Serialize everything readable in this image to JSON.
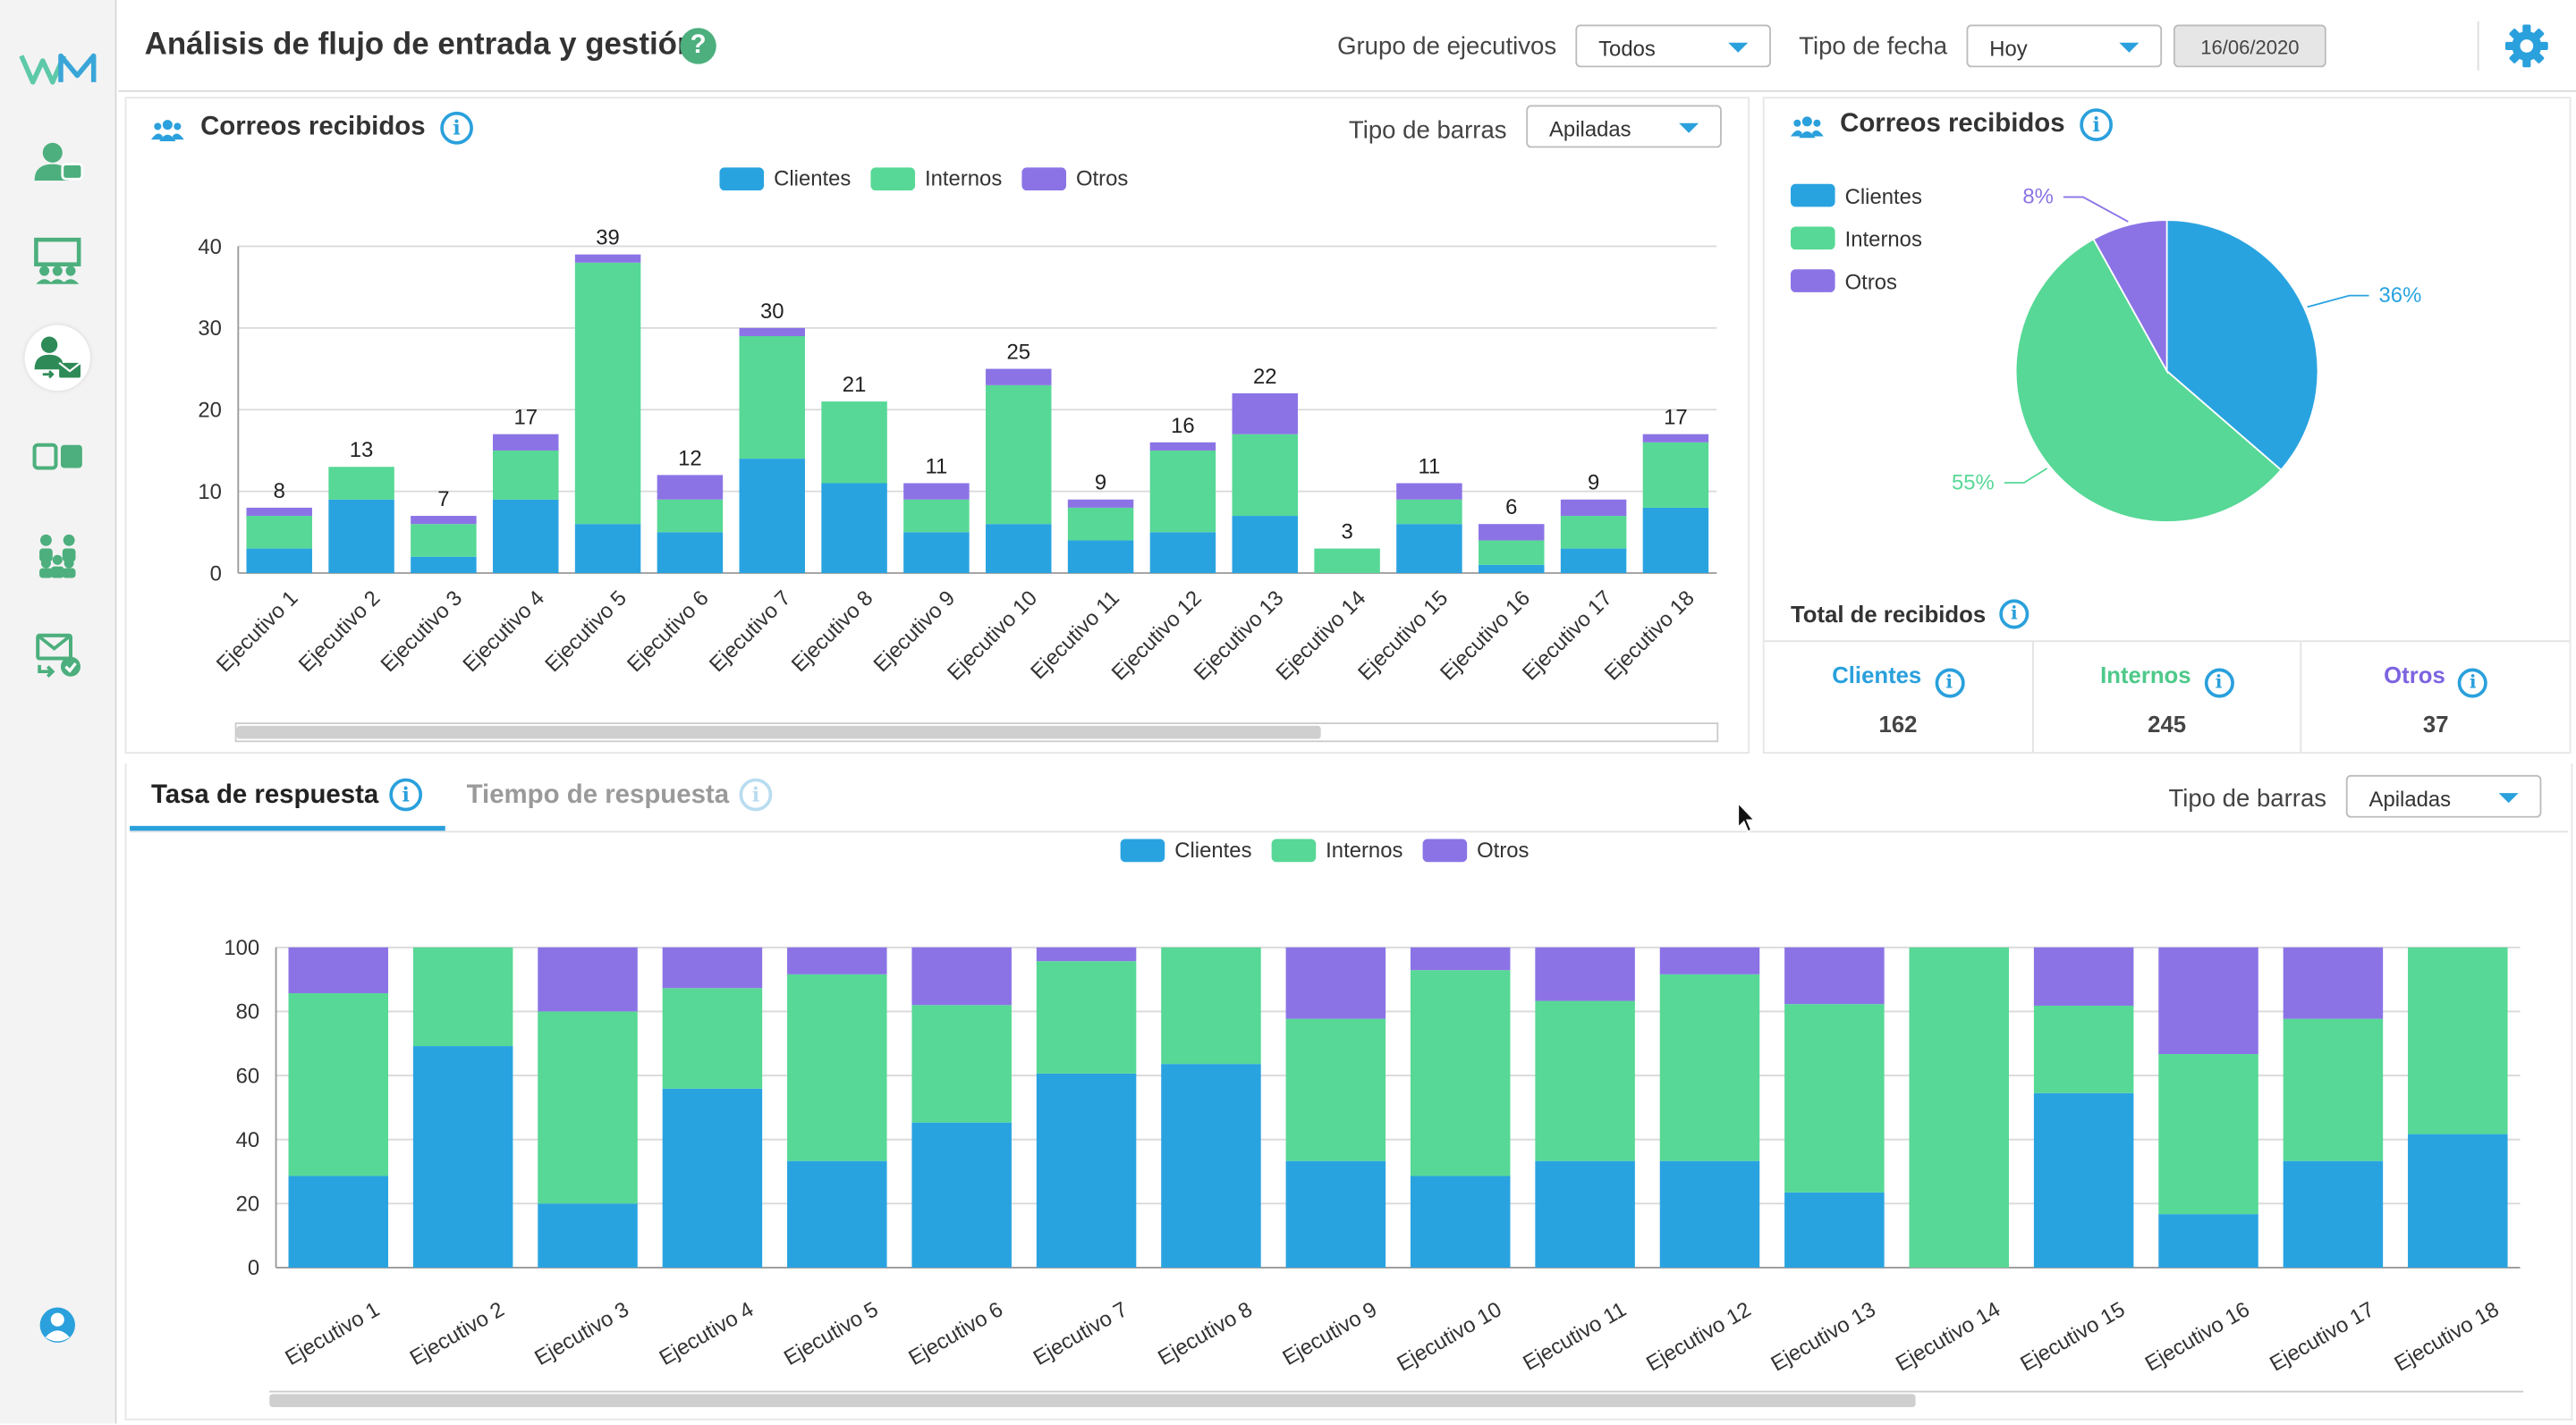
{
  "header": {
    "title": "Análisis de flujo de entrada y gestión",
    "help_icon": "help-question-icon",
    "group_label": "Grupo de ejecutivos",
    "group_value": "Todos",
    "date_type_label": "Tipo de fecha",
    "date_type_value": "Hoy",
    "date_value": "16/06/2020"
  },
  "sidebar": {
    "logo": "WM",
    "items": [
      {
        "icon": "user-tag-icon",
        "active": false
      },
      {
        "icon": "presentation-team-icon",
        "active": false
      },
      {
        "icon": "user-mail-flow-icon",
        "active": true
      },
      {
        "icon": "cards-toggle-icon",
        "active": false
      },
      {
        "icon": "team-group-icon",
        "active": false
      },
      {
        "icon": "mail-check-icon",
        "active": false
      }
    ],
    "bottom_icon": "user-profile-icon"
  },
  "colors": {
    "clientes": "#29a3e0",
    "internos": "#57d896",
    "otros": "#8b73e6",
    "accent": "#2aa0dc",
    "green": "#4caf7d"
  },
  "bar_panel": {
    "title": "Correos recibidos",
    "bar_type_label": "Tipo de barras",
    "bar_type_value": "Apiladas",
    "legend": [
      "Clientes",
      "Internos",
      "Otros"
    ]
  },
  "pie_panel": {
    "title": "Correos recibidos",
    "legend": [
      "Clientes",
      "Internos",
      "Otros"
    ],
    "totals_title": "Total de recibidos",
    "totals": [
      {
        "label": "Clientes",
        "value": "162"
      },
      {
        "label": "Internos",
        "value": "245"
      },
      {
        "label": "Otros",
        "value": "37"
      }
    ]
  },
  "bottom_panel": {
    "tabs": [
      "Tasa de respuesta",
      "Tiempo de respuesta"
    ],
    "bar_type_label": "Tipo de barras",
    "bar_type_value": "Apiladas",
    "legend": [
      "Clientes",
      "Internos",
      "Otros"
    ]
  },
  "chart_data": [
    {
      "type": "bar",
      "stacked": true,
      "title": "Correos recibidos",
      "categories": [
        "Ejecutivo 1",
        "Ejecutivo 2",
        "Ejecutivo 3",
        "Ejecutivo 4",
        "Ejecutivo 5",
        "Ejecutivo 6",
        "Ejecutivo 7",
        "Ejecutivo 8",
        "Ejecutivo 9",
        "Ejecutivo 10",
        "Ejecutivo 11",
        "Ejecutivo 12",
        "Ejecutivo 13",
        "Ejecutivo 14",
        "Ejecutivo 15",
        "Ejecutivo 16",
        "Ejecutivo 17",
        "Ejecutivo 18"
      ],
      "series": [
        {
          "name": "Clientes",
          "values": [
            3,
            9,
            2,
            9,
            6,
            5,
            14,
            11,
            5,
            6,
            4,
            5,
            7,
            0,
            6,
            1,
            3,
            8
          ]
        },
        {
          "name": "Internos",
          "values": [
            4,
            4,
            4,
            6,
            32,
            4,
            15,
            10,
            4,
            17,
            4,
            10,
            10,
            3,
            3,
            3,
            4,
            8
          ]
        },
        {
          "name": "Otros",
          "values": [
            1,
            0,
            1,
            2,
            1,
            3,
            1,
            0,
            2,
            2,
            1,
            1,
            5,
            0,
            2,
            2,
            2,
            1
          ]
        }
      ],
      "totals": [
        8,
        13,
        7,
        17,
        39,
        12,
        30,
        21,
        11,
        25,
        9,
        16,
        22,
        3,
        11,
        6,
        9,
        17
      ],
      "yticks": [
        0,
        10,
        20,
        30,
        40
      ],
      "ylim": [
        0,
        40
      ],
      "grid": true,
      "legend_position": "top"
    },
    {
      "type": "pie",
      "title": "Correos recibidos",
      "labels": [
        "Clientes",
        "Internos",
        "Otros"
      ],
      "values": [
        36,
        55,
        8
      ],
      "value_labels": [
        "36%",
        "55%",
        "8%"
      ],
      "legend_position": "left"
    },
    {
      "type": "bar",
      "stacked": true,
      "title": "Tasa de respuesta",
      "categories": [
        "Ejecutivo 1",
        "Ejecutivo 2",
        "Ejecutivo 3",
        "Ejecutivo 4",
        "Ejecutivo 5",
        "Ejecutivo 6",
        "Ejecutivo 7",
        "Ejecutivo 8",
        "Ejecutivo 9",
        "Ejecutivo 10",
        "Ejecutivo 11",
        "Ejecutivo 12",
        "Ejecutivo 13",
        "Ejecutivo 14",
        "Ejecutivo 15",
        "Ejecutivo 16",
        "Ejecutivo 17",
        "Ejecutivo 18"
      ],
      "series": [
        {
          "name": "Clientes",
          "values": [
            28.6,
            69.2,
            20,
            55.9,
            33.3,
            45.3,
            60.6,
            63.6,
            33.3,
            28.6,
            33.3,
            33.3,
            23.5,
            0,
            54.5,
            16.7,
            33.3,
            41.7
          ]
        },
        {
          "name": "Internos",
          "values": [
            57.1,
            30.8,
            60,
            31.4,
            58.3,
            36.7,
            35.1,
            36.4,
            44.4,
            64.3,
            50,
            58.3,
            58.8,
            100,
            27.3,
            50,
            44.4,
            58.3
          ]
        },
        {
          "name": "Otros",
          "values": [
            14.3,
            0,
            20,
            12.7,
            8.4,
            18,
            4.3,
            0,
            22.3,
            7.1,
            16.7,
            8.4,
            17.7,
            0,
            18.2,
            33.3,
            22.3,
            0
          ]
        }
      ],
      "yticks": [
        0,
        20,
        40,
        60,
        80,
        100
      ],
      "ylim": [
        0,
        100
      ],
      "grid": true,
      "legend_position": "top"
    }
  ]
}
